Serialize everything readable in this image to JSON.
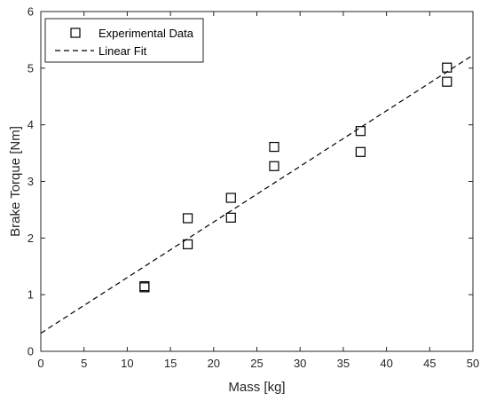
{
  "chart_data": {
    "type": "scatter",
    "title": "",
    "xlabel": "Mass [kg]",
    "ylabel": "Brake Torque [Nm]",
    "xlim": [
      0,
      50
    ],
    "ylim": [
      0,
      6
    ],
    "xticks": [
      0,
      5,
      10,
      15,
      20,
      25,
      30,
      35,
      40,
      45,
      50
    ],
    "yticks": [
      0,
      1,
      2,
      3,
      4,
      5,
      6
    ],
    "grid": false,
    "legend_position": "top-left",
    "series": [
      {
        "name": "Experimental Data",
        "kind": "scatter",
        "marker": "square",
        "color": "#000000",
        "x": [
          12,
          12,
          17,
          17,
          22,
          22,
          27,
          27,
          37,
          37,
          47,
          47
        ],
        "y": [
          1.15,
          1.13,
          2.35,
          1.89,
          2.71,
          2.36,
          3.61,
          3.27,
          3.89,
          3.52,
          5.01,
          4.76
        ]
      },
      {
        "name": "Linear Fit",
        "kind": "line",
        "dash": "dashed",
        "color": "#000000",
        "x": [
          0,
          50
        ],
        "y": [
          0.32,
          5.23
        ]
      }
    ]
  }
}
